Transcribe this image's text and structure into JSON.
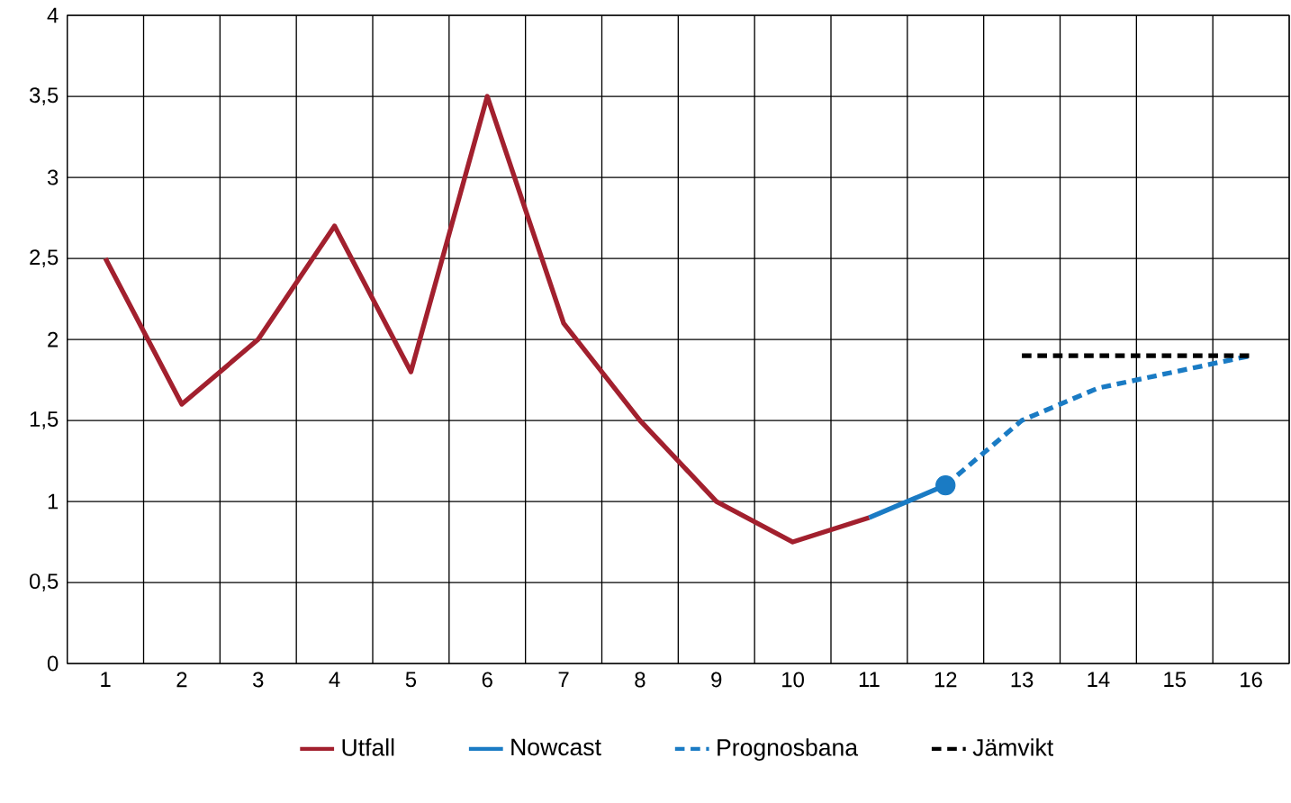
{
  "chart_data": {
    "type": "line",
    "categories": [
      "1",
      "2",
      "3",
      "4",
      "5",
      "6",
      "7",
      "8",
      "9",
      "10",
      "11",
      "12",
      "13",
      "14",
      "15",
      "16"
    ],
    "ylim": [
      0,
      4
    ],
    "yticks": [
      0,
      {
        "value": 0.5,
        "label": "0,5"
      },
      1,
      {
        "value": 1.5,
        "label": "1,5"
      },
      2,
      {
        "value": 2.5,
        "label": "2,5"
      },
      3,
      {
        "value": 3.5,
        "label": "3,5"
      },
      4
    ],
    "grid": true,
    "legend": "bottom",
    "series": [
      {
        "name": "Utfall",
        "color": "#a2202e",
        "line_style": "solid",
        "values": [
          2.5,
          1.6,
          2.0,
          2.7,
          1.8,
          3.5,
          2.1,
          1.5,
          1.0,
          0.75,
          0.9,
          null,
          null,
          null,
          null,
          null
        ]
      },
      {
        "name": "Nowcast",
        "color": "#1a7bc4",
        "line_style": "solid",
        "values": [
          null,
          null,
          null,
          null,
          null,
          null,
          null,
          null,
          null,
          null,
          0.9,
          1.1,
          null,
          null,
          null,
          null
        ]
      },
      {
        "name": "Prognosbana",
        "color": "#1a7bc4",
        "line_style": "dashed",
        "values": [
          null,
          null,
          null,
          null,
          null,
          null,
          null,
          null,
          null,
          null,
          null,
          1.1,
          1.5,
          1.7,
          1.8,
          1.9
        ]
      },
      {
        "name": "Jämvikt",
        "color": "#000000",
        "line_style": "dashed",
        "values": [
          null,
          null,
          null,
          null,
          null,
          null,
          null,
          null,
          null,
          null,
          null,
          null,
          1.9,
          1.9,
          1.9,
          1.9
        ]
      },
      {
        "type": "scatter",
        "color": "#1a7bc4",
        "marker": "circle",
        "values": [
          null,
          null,
          null,
          null,
          null,
          null,
          null,
          null,
          null,
          null,
          null,
          1.1,
          null,
          null,
          null,
          null
        ]
      }
    ]
  }
}
